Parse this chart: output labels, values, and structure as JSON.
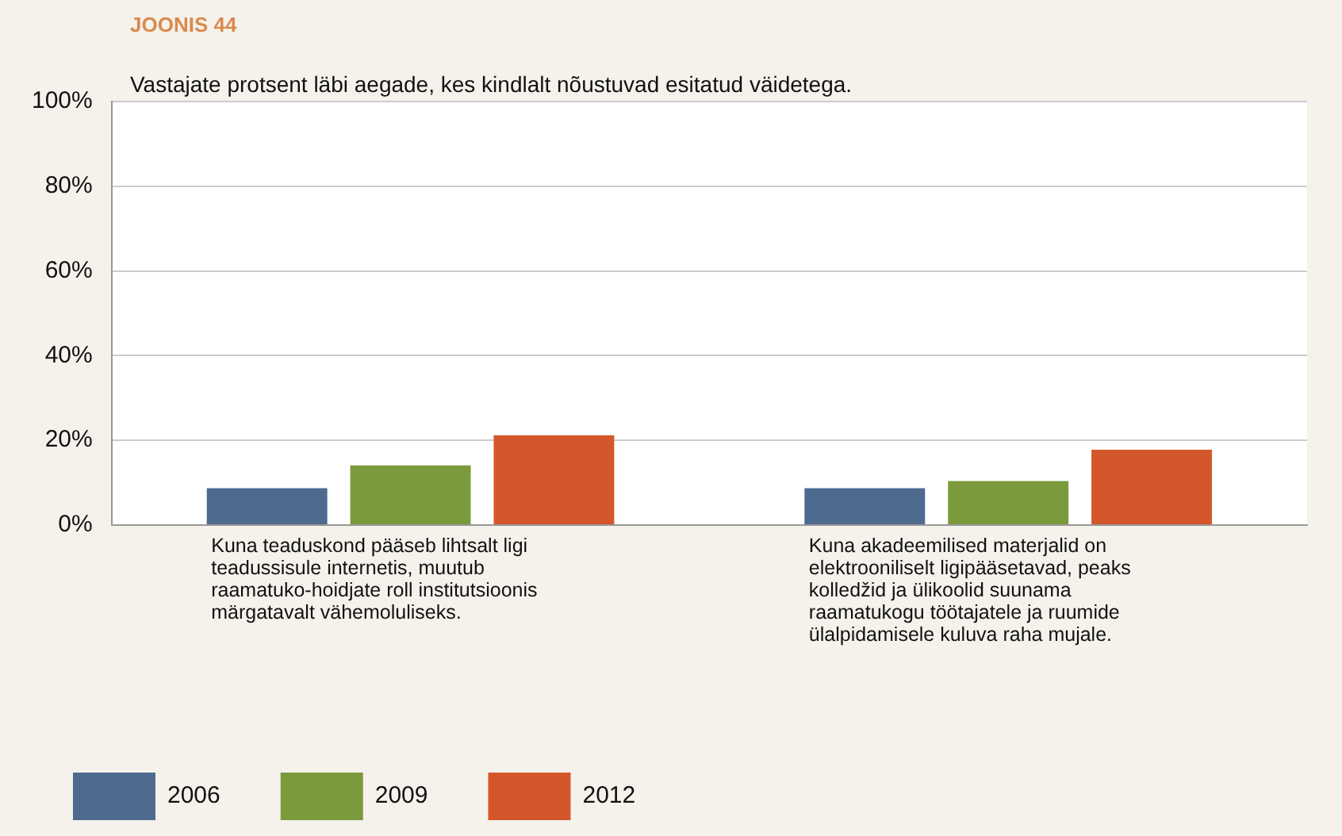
{
  "chart_data": {
    "type": "bar",
    "title": "JOONIS 44",
    "subtitle": "Vastajate protsent läbi aegade, kes kindlalt nõustuvad esitatud väidetega.",
    "categories": [
      "Kuna teaduskond pääseb lihtsalt ligi teadussisule internetis, muutub raamatuko-hoidjate roll institutsioonis märgatavalt vähemoluliseks.",
      "Kuna akadeemilised materjalid on elektrooniliselt ligipääsetavad, peaks kolledžid ja ülikoolid suunama raamatukogu töötajatele ja ruumide ülalpidamisele kuluva raha mujale."
    ],
    "series": [
      {
        "name": "2006",
        "color": "#4f6a8f",
        "values": [
          8.7,
          8.7
        ]
      },
      {
        "name": "2009",
        "color": "#7b9a3c",
        "values": [
          14.1,
          10.4
        ]
      },
      {
        "name": "2012",
        "color": "#d4572b",
        "values": [
          21.2,
          17.8
        ]
      }
    ],
    "ylim": [
      0,
      100
    ],
    "yticks": [
      {
        "value": 0,
        "label": "0%"
      },
      {
        "value": 20,
        "label": "20%"
      },
      {
        "value": 40,
        "label": "40%"
      },
      {
        "value": 60,
        "label": "60%"
      },
      {
        "value": 80,
        "label": "80%"
      },
      {
        "value": 100,
        "label": "100%"
      }
    ],
    "grid": "y",
    "legend": "bottom"
  }
}
